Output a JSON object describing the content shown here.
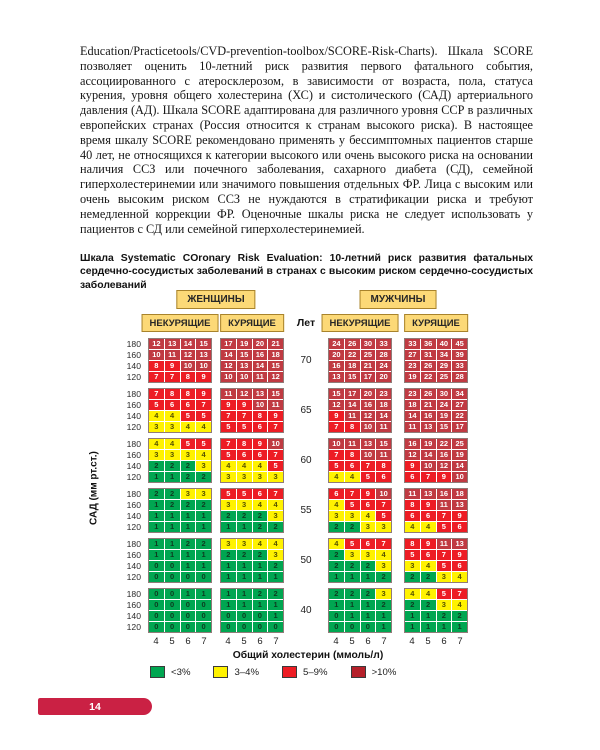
{
  "page": {
    "paragraph": "Education/Practicetools/CVD-prevention-toolbox/SCORE-Risk-Charts). Шкала SCORE позволяет оценить 10-летний риск развития первого фатального события, ассоциированного с атеросклерозом, в зависимости от возраста, пола, статуса курения, уровня общего холестерина (ХС) и систолического (САД) артериального давления (АД). Шкала SCORE адаптирована для различного уровня ССР в различных европейских странах (Россия относится к странам высокого риска). В настоящее время шкалу SCORE рекомендовано применять у бессимптомных пациентов старше 40 лет, не относящихся к категории высокого или очень высокого риска на основании наличия ССЗ или почечного заболевания, сахарного диабета (СД), семейной гиперхолестеринемии или значимого повышения отдельных ФР. Лица с высоким или очень высоким риском ССЗ не нуждаются в стратификации риска и требуют немедленной коррекции ФР. Оценочные шкалы риска не следует использовать у пациентов с СД или семейной гиперхолестеринемией.",
    "caption": "Шкала Systematic COronary Risk Evaluation: 10-летний риск развития фатальных сердечно-сосудистых заболеваний в странах с высоким риском сердечно-сосудистых заболеваний",
    "page_number": "14"
  },
  "chart_data": {
    "type": "heatmap",
    "title": "Шкала Systematic COronary Risk Evaluation: 10-летний риск развития фатальных сердечно-сосудистых заболеваний в странах с высоким риском сердечно-сосудистых заболеваний",
    "gender_headers": [
      "ЖЕНЩИНЫ",
      "МУЖЧИНЫ"
    ],
    "smoking_headers": [
      "НЕКУРЯЩИЕ",
      "КУРЯЩИЕ"
    ],
    "age_unit_label": "Лет",
    "ylabel": "САД (мм рт.ст.)",
    "xlabel": "Общий холестерин (ммоль/л)",
    "sbp_values": [
      "180",
      "160",
      "140",
      "120"
    ],
    "cholesterol_values": [
      "4",
      "5",
      "6",
      "7"
    ],
    "thresholds": {
      "green_below": 3,
      "yellow_below": 5,
      "red_below": 10
    },
    "colors": {
      "green": "#00a651",
      "yellow": "#fff200",
      "red": "#ed1c24",
      "darkred": "#c03a42",
      "text_on_green": "#0d3b20",
      "text_on_yellow": "#565200",
      "text_on_red": "#ffffff"
    },
    "legend": [
      {
        "label": "<3%",
        "color": "#00a651"
      },
      {
        "label": "3–4%",
        "color": "#fff200"
      },
      {
        "label": "5–9%",
        "color": "#ed1c24"
      },
      {
        "label": ">10%",
        "color": "#b5202a"
      }
    ],
    "rows": [
      {
        "age": "70",
        "women_nonsmoking": [
          [
            12,
            13,
            14,
            15
          ],
          [
            10,
            11,
            12,
            13
          ],
          [
            8,
            9,
            10,
            10
          ],
          [
            7,
            7,
            8,
            9
          ]
        ],
        "women_smoking": [
          [
            17,
            19,
            20,
            21
          ],
          [
            14,
            15,
            16,
            18
          ],
          [
            12,
            13,
            14,
            15
          ],
          [
            10,
            10,
            11,
            12
          ]
        ],
        "men_nonsmoking": [
          [
            24,
            26,
            30,
            33
          ],
          [
            20,
            22,
            25,
            28
          ],
          [
            16,
            18,
            21,
            24
          ],
          [
            13,
            15,
            17,
            20
          ]
        ],
        "men_smoking": [
          [
            33,
            36,
            40,
            45
          ],
          [
            27,
            31,
            34,
            39
          ],
          [
            23,
            26,
            29,
            33
          ],
          [
            19,
            22,
            25,
            28
          ]
        ]
      },
      {
        "age": "65",
        "women_nonsmoking": [
          [
            7,
            8,
            8,
            9
          ],
          [
            5,
            6,
            6,
            7
          ],
          [
            4,
            4,
            5,
            5
          ],
          [
            3,
            3,
            4,
            4
          ]
        ],
        "women_smoking": [
          [
            11,
            12,
            13,
            15
          ],
          [
            9,
            9,
            10,
            11
          ],
          [
            7,
            7,
            8,
            9
          ],
          [
            5,
            5,
            6,
            7
          ]
        ],
        "men_nonsmoking": [
          [
            15,
            17,
            20,
            23
          ],
          [
            12,
            14,
            16,
            18
          ],
          [
            9,
            11,
            12,
            14
          ],
          [
            7,
            8,
            10,
            11
          ]
        ],
        "men_smoking": [
          [
            23,
            26,
            30,
            34
          ],
          [
            18,
            21,
            24,
            27
          ],
          [
            14,
            16,
            19,
            22
          ],
          [
            11,
            13,
            15,
            17
          ]
        ]
      },
      {
        "age": "60",
        "women_nonsmoking": [
          [
            4,
            4,
            5,
            5
          ],
          [
            3,
            3,
            3,
            4
          ],
          [
            2,
            2,
            2,
            3
          ],
          [
            1,
            1,
            2,
            2
          ]
        ],
        "women_smoking": [
          [
            7,
            8,
            9,
            10
          ],
          [
            5,
            6,
            6,
            7
          ],
          [
            4,
            4,
            4,
            5
          ],
          [
            3,
            3,
            3,
            3
          ]
        ],
        "men_nonsmoking": [
          [
            10,
            11,
            13,
            15
          ],
          [
            7,
            8,
            10,
            11
          ],
          [
            5,
            6,
            7,
            8
          ],
          [
            4,
            4,
            5,
            6
          ]
        ],
        "men_smoking": [
          [
            16,
            19,
            22,
            25
          ],
          [
            12,
            14,
            16,
            19
          ],
          [
            9,
            10,
            12,
            14
          ],
          [
            6,
            7,
            9,
            10
          ]
        ]
      },
      {
        "age": "55",
        "women_nonsmoking": [
          [
            2,
            2,
            3,
            3
          ],
          [
            1,
            2,
            2,
            2
          ],
          [
            1,
            1,
            1,
            1
          ],
          [
            1,
            1,
            1,
            1
          ]
        ],
        "women_smoking": [
          [
            5,
            5,
            6,
            7
          ],
          [
            3,
            3,
            4,
            4
          ],
          [
            2,
            2,
            2,
            3
          ],
          [
            1,
            1,
            2,
            2
          ]
        ],
        "men_nonsmoking": [
          [
            6,
            7,
            9,
            10
          ],
          [
            4,
            5,
            6,
            7
          ],
          [
            3,
            3,
            4,
            5
          ],
          [
            2,
            2,
            3,
            3
          ]
        ],
        "men_smoking": [
          [
            11,
            13,
            16,
            18
          ],
          [
            8,
            9,
            11,
            13
          ],
          [
            6,
            6,
            7,
            9
          ],
          [
            4,
            4,
            5,
            6
          ]
        ]
      },
      {
        "age": "50",
        "women_nonsmoking": [
          [
            1,
            1,
            2,
            2
          ],
          [
            1,
            1,
            1,
            1
          ],
          [
            0,
            0,
            1,
            1
          ],
          [
            0,
            0,
            0,
            0
          ]
        ],
        "women_smoking": [
          [
            3,
            3,
            4,
            4
          ],
          [
            2,
            2,
            2,
            3
          ],
          [
            1,
            1,
            1,
            2
          ],
          [
            1,
            1,
            1,
            1
          ]
        ],
        "men_nonsmoking": [
          [
            4,
            5,
            6,
            7
          ],
          [
            2,
            3,
            3,
            4
          ],
          [
            2,
            2,
            2,
            3
          ],
          [
            1,
            1,
            1,
            2
          ]
        ],
        "men_smoking": [
          [
            8,
            9,
            11,
            13
          ],
          [
            5,
            6,
            7,
            9
          ],
          [
            3,
            4,
            5,
            6
          ],
          [
            2,
            2,
            3,
            4
          ]
        ]
      },
      {
        "age": "40",
        "women_nonsmoking": [
          [
            0,
            0,
            1,
            1
          ],
          [
            0,
            0,
            0,
            0
          ],
          [
            0,
            0,
            0,
            0
          ],
          [
            0,
            0,
            0,
            0
          ]
        ],
        "women_smoking": [
          [
            1,
            1,
            2,
            2
          ],
          [
            1,
            1,
            1,
            1
          ],
          [
            0,
            0,
            0,
            1
          ],
          [
            0,
            0,
            0,
            0
          ]
        ],
        "men_nonsmoking": [
          [
            2,
            2,
            2,
            3
          ],
          [
            1,
            1,
            1,
            2
          ],
          [
            0,
            1,
            1,
            1
          ],
          [
            0,
            0,
            0,
            1
          ]
        ],
        "men_smoking": [
          [
            4,
            4,
            5,
            7
          ],
          [
            2,
            2,
            3,
            4
          ],
          [
            1,
            1,
            2,
            2
          ],
          [
            1,
            1,
            1,
            1
          ]
        ]
      }
    ]
  }
}
